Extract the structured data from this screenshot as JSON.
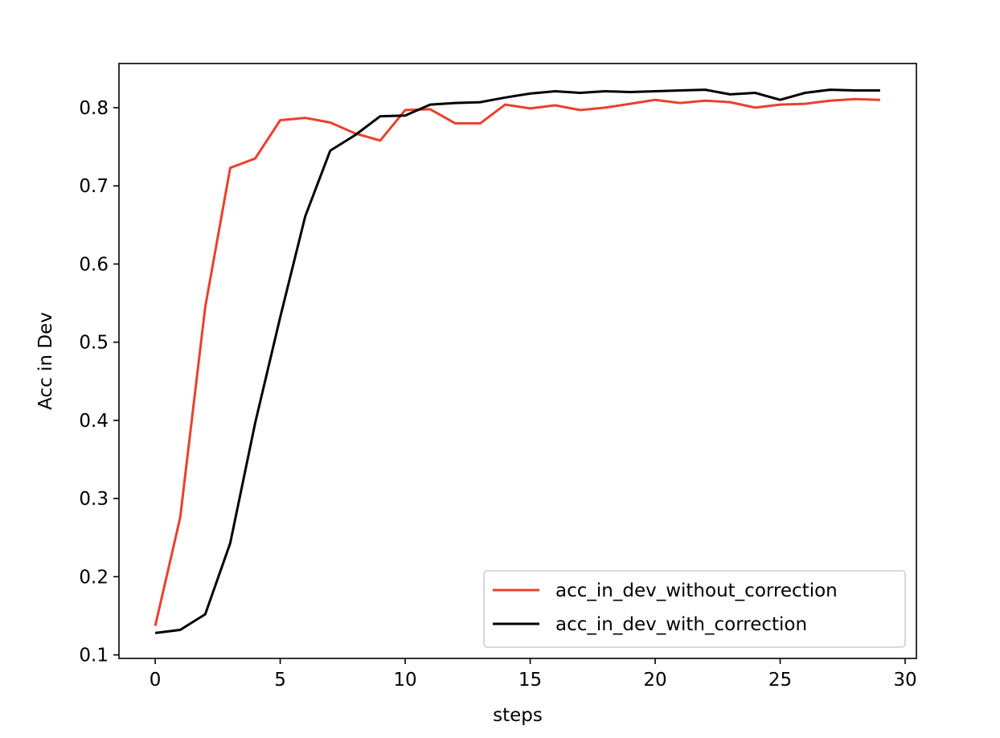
{
  "chart_data": {
    "type": "line",
    "title": "",
    "xlabel": "steps",
    "ylabel": "Acc in Dev",
    "xlim": [
      -1.45,
      30.45
    ],
    "ylim": [
      0.0955,
      0.8565
    ],
    "xticks": [
      0,
      5,
      10,
      15,
      20,
      25,
      30
    ],
    "xtick_labels": [
      "0",
      "5",
      "10",
      "15",
      "20",
      "25",
      "30"
    ],
    "yticks": [
      0.1,
      0.2,
      0.3,
      0.4,
      0.5,
      0.6,
      0.7,
      0.8
    ],
    "ytick_labels": [
      "0.1",
      "0.2",
      "0.3",
      "0.4",
      "0.5",
      "0.6",
      "0.7",
      "0.8"
    ],
    "grid": false,
    "legend_position": "lower-right",
    "x": [
      0,
      1,
      2,
      3,
      4,
      5,
      6,
      7,
      8,
      9,
      10,
      11,
      12,
      13,
      14,
      15,
      16,
      17,
      18,
      19,
      20,
      21,
      22,
      23,
      24,
      25,
      26,
      27,
      28,
      29
    ],
    "series": [
      {
        "name": "acc_in_dev_without_correction",
        "color": "#e8412c",
        "values": [
          0.137,
          0.276,
          0.545,
          0.723,
          0.735,
          0.784,
          0.787,
          0.781,
          0.767,
          0.758,
          0.797,
          0.798,
          0.78,
          0.78,
          0.804,
          0.799,
          0.803,
          0.797,
          0.8,
          0.805,
          0.81,
          0.806,
          0.809,
          0.807,
          0.8,
          0.804,
          0.805,
          0.809,
          0.811,
          0.81
        ]
      },
      {
        "name": "acc_in_dev_with_correction",
        "color": "#000000",
        "values": [
          0.128,
          0.132,
          0.152,
          0.243,
          0.397,
          0.532,
          0.661,
          0.745,
          0.765,
          0.789,
          0.79,
          0.804,
          0.806,
          0.807,
          0.813,
          0.818,
          0.821,
          0.819,
          0.821,
          0.82,
          0.821,
          0.822,
          0.823,
          0.817,
          0.819,
          0.81,
          0.819,
          0.823,
          0.822,
          0.822
        ]
      }
    ]
  }
}
